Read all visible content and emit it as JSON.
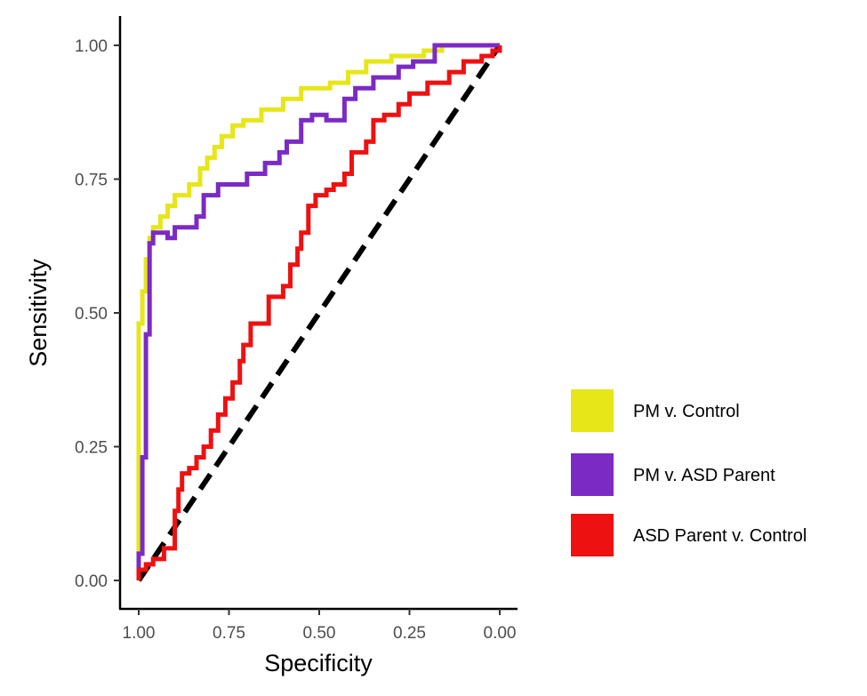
{
  "chart_data": {
    "type": "line",
    "title": "",
    "xlabel": "Specificity",
    "ylabel": "Sensitivity",
    "xlim": [
      1.0,
      0.0
    ],
    "ylim": [
      0.0,
      1.0
    ],
    "x_reversed": true,
    "grid": false,
    "legend_position": "right",
    "x_ticks": [
      {
        "value": 1.0,
        "label": "1.00"
      },
      {
        "value": 0.75,
        "label": "0.75"
      },
      {
        "value": 0.5,
        "label": "0.50"
      },
      {
        "value": 0.25,
        "label": "0.25"
      },
      {
        "value": 0.0,
        "label": "0.00"
      }
    ],
    "y_ticks": [
      {
        "value": 0.0,
        "label": "0.00"
      },
      {
        "value": 0.25,
        "label": "0.25"
      },
      {
        "value": 0.5,
        "label": "0.50"
      },
      {
        "value": 0.75,
        "label": "0.75"
      },
      {
        "value": 1.0,
        "label": "1.00"
      }
    ],
    "reference_line": {
      "name": "chance",
      "style": "dashed",
      "color": "#000000",
      "points": [
        [
          1.0,
          0.0
        ],
        [
          0.0,
          1.0
        ]
      ]
    },
    "series": [
      {
        "name": "PM v. Control",
        "color": "#e6e619",
        "points": [
          [
            1.0,
            0.0
          ],
          [
            1.0,
            0.48
          ],
          [
            0.99,
            0.48
          ],
          [
            0.99,
            0.54
          ],
          [
            0.98,
            0.54
          ],
          [
            0.98,
            0.6
          ],
          [
            0.97,
            0.6
          ],
          [
            0.97,
            0.64
          ],
          [
            0.96,
            0.64
          ],
          [
            0.96,
            0.66
          ],
          [
            0.94,
            0.66
          ],
          [
            0.94,
            0.68
          ],
          [
            0.92,
            0.68
          ],
          [
            0.92,
            0.7
          ],
          [
            0.9,
            0.7
          ],
          [
            0.9,
            0.72
          ],
          [
            0.86,
            0.72
          ],
          [
            0.86,
            0.74
          ],
          [
            0.83,
            0.74
          ],
          [
            0.83,
            0.77
          ],
          [
            0.81,
            0.77
          ],
          [
            0.81,
            0.79
          ],
          [
            0.79,
            0.79
          ],
          [
            0.79,
            0.81
          ],
          [
            0.77,
            0.81
          ],
          [
            0.77,
            0.83
          ],
          [
            0.74,
            0.83
          ],
          [
            0.74,
            0.85
          ],
          [
            0.71,
            0.85
          ],
          [
            0.71,
            0.86
          ],
          [
            0.66,
            0.86
          ],
          [
            0.66,
            0.88
          ],
          [
            0.6,
            0.88
          ],
          [
            0.6,
            0.9
          ],
          [
            0.55,
            0.9
          ],
          [
            0.55,
            0.92
          ],
          [
            0.47,
            0.92
          ],
          [
            0.47,
            0.93
          ],
          [
            0.42,
            0.93
          ],
          [
            0.42,
            0.95
          ],
          [
            0.37,
            0.95
          ],
          [
            0.37,
            0.97
          ],
          [
            0.3,
            0.97
          ],
          [
            0.3,
            0.98
          ],
          [
            0.21,
            0.98
          ],
          [
            0.21,
            0.99
          ],
          [
            0.16,
            0.99
          ],
          [
            0.16,
            1.0
          ],
          [
            0.0,
            1.0
          ]
        ]
      },
      {
        "name": "PM v. ASD Parent",
        "color": "#7b2bc4",
        "points": [
          [
            1.0,
            0.0
          ],
          [
            1.0,
            0.05
          ],
          [
            0.99,
            0.05
          ],
          [
            0.99,
            0.23
          ],
          [
            0.98,
            0.23
          ],
          [
            0.98,
            0.46
          ],
          [
            0.97,
            0.46
          ],
          [
            0.97,
            0.63
          ],
          [
            0.96,
            0.63
          ],
          [
            0.96,
            0.65
          ],
          [
            0.92,
            0.65
          ],
          [
            0.92,
            0.64
          ],
          [
            0.9,
            0.64
          ],
          [
            0.9,
            0.66
          ],
          [
            0.84,
            0.66
          ],
          [
            0.84,
            0.68
          ],
          [
            0.82,
            0.68
          ],
          [
            0.82,
            0.72
          ],
          [
            0.78,
            0.72
          ],
          [
            0.78,
            0.74
          ],
          [
            0.7,
            0.74
          ],
          [
            0.7,
            0.76
          ],
          [
            0.65,
            0.76
          ],
          [
            0.65,
            0.78
          ],
          [
            0.61,
            0.78
          ],
          [
            0.61,
            0.8
          ],
          [
            0.59,
            0.8
          ],
          [
            0.59,
            0.82
          ],
          [
            0.55,
            0.82
          ],
          [
            0.55,
            0.86
          ],
          [
            0.52,
            0.86
          ],
          [
            0.52,
            0.87
          ],
          [
            0.48,
            0.87
          ],
          [
            0.48,
            0.86
          ],
          [
            0.43,
            0.86
          ],
          [
            0.43,
            0.9
          ],
          [
            0.4,
            0.9
          ],
          [
            0.4,
            0.92
          ],
          [
            0.35,
            0.92
          ],
          [
            0.35,
            0.94
          ],
          [
            0.28,
            0.94
          ],
          [
            0.28,
            0.96
          ],
          [
            0.24,
            0.96
          ],
          [
            0.24,
            0.97
          ],
          [
            0.18,
            0.97
          ],
          [
            0.18,
            1.0
          ],
          [
            0.0,
            1.0
          ]
        ]
      },
      {
        "name": "ASD Parent v. Control",
        "color": "#ee1111",
        "points": [
          [
            1.0,
            0.0
          ],
          [
            1.0,
            0.02
          ],
          [
            0.98,
            0.02
          ],
          [
            0.98,
            0.03
          ],
          [
            0.96,
            0.03
          ],
          [
            0.96,
            0.04
          ],
          [
            0.93,
            0.04
          ],
          [
            0.93,
            0.06
          ],
          [
            0.9,
            0.06
          ],
          [
            0.9,
            0.13
          ],
          [
            0.89,
            0.13
          ],
          [
            0.89,
            0.17
          ],
          [
            0.88,
            0.17
          ],
          [
            0.88,
            0.2
          ],
          [
            0.86,
            0.2
          ],
          [
            0.86,
            0.21
          ],
          [
            0.84,
            0.21
          ],
          [
            0.84,
            0.23
          ],
          [
            0.82,
            0.23
          ],
          [
            0.82,
            0.25
          ],
          [
            0.8,
            0.25
          ],
          [
            0.8,
            0.28
          ],
          [
            0.78,
            0.28
          ],
          [
            0.78,
            0.31
          ],
          [
            0.76,
            0.31
          ],
          [
            0.76,
            0.34
          ],
          [
            0.74,
            0.34
          ],
          [
            0.74,
            0.37
          ],
          [
            0.72,
            0.37
          ],
          [
            0.72,
            0.41
          ],
          [
            0.71,
            0.41
          ],
          [
            0.71,
            0.44
          ],
          [
            0.69,
            0.44
          ],
          [
            0.69,
            0.48
          ],
          [
            0.64,
            0.48
          ],
          [
            0.64,
            0.53
          ],
          [
            0.6,
            0.53
          ],
          [
            0.6,
            0.55
          ],
          [
            0.58,
            0.55
          ],
          [
            0.58,
            0.59
          ],
          [
            0.56,
            0.59
          ],
          [
            0.56,
            0.62
          ],
          [
            0.55,
            0.62
          ],
          [
            0.55,
            0.65
          ],
          [
            0.53,
            0.65
          ],
          [
            0.53,
            0.7
          ],
          [
            0.51,
            0.7
          ],
          [
            0.51,
            0.72
          ],
          [
            0.48,
            0.72
          ],
          [
            0.48,
            0.73
          ],
          [
            0.46,
            0.73
          ],
          [
            0.46,
            0.74
          ],
          [
            0.43,
            0.74
          ],
          [
            0.43,
            0.76
          ],
          [
            0.41,
            0.76
          ],
          [
            0.41,
            0.8
          ],
          [
            0.37,
            0.8
          ],
          [
            0.37,
            0.82
          ],
          [
            0.35,
            0.82
          ],
          [
            0.35,
            0.86
          ],
          [
            0.32,
            0.86
          ],
          [
            0.32,
            0.87
          ],
          [
            0.28,
            0.87
          ],
          [
            0.28,
            0.89
          ],
          [
            0.25,
            0.89
          ],
          [
            0.25,
            0.91
          ],
          [
            0.2,
            0.91
          ],
          [
            0.2,
            0.93
          ],
          [
            0.14,
            0.93
          ],
          [
            0.14,
            0.95
          ],
          [
            0.1,
            0.95
          ],
          [
            0.1,
            0.97
          ],
          [
            0.05,
            0.97
          ],
          [
            0.05,
            0.98
          ],
          [
            0.02,
            0.98
          ],
          [
            0.02,
            0.99
          ],
          [
            0.0,
            0.99
          ],
          [
            0.0,
            1.0
          ]
        ]
      }
    ]
  }
}
